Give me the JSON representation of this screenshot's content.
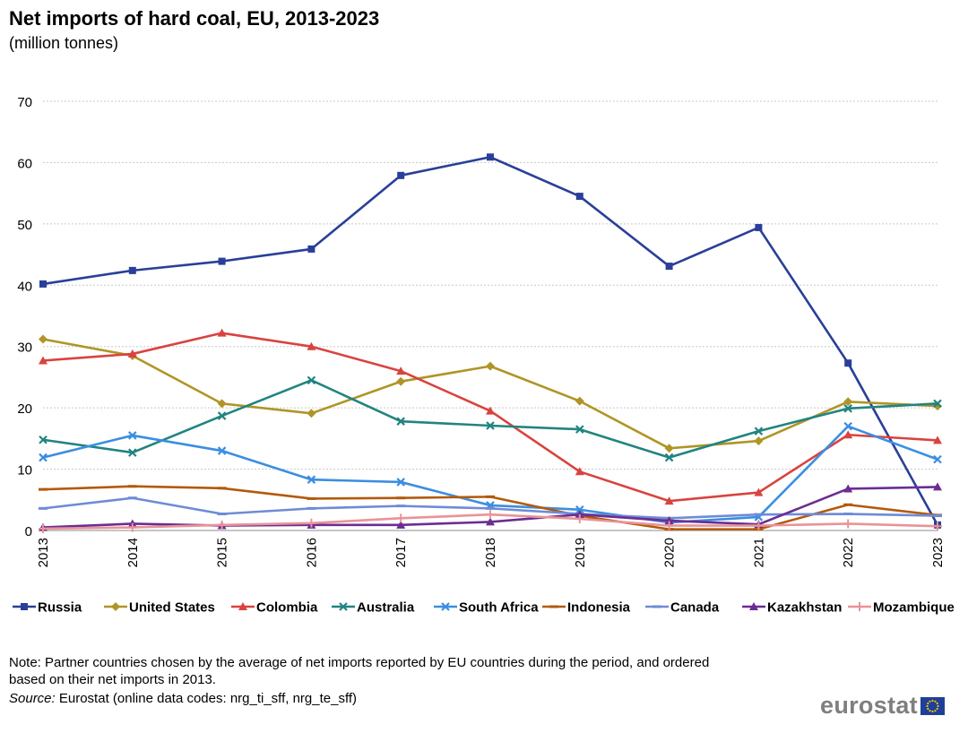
{
  "chart_data": {
    "type": "line",
    "title": "Net imports of hard coal, EU, 2013-2023",
    "subtitle": "(million tonnes)",
    "x": [
      "2013",
      "2014",
      "2015",
      "2016",
      "2017",
      "2018",
      "2019",
      "2020",
      "2021",
      "2022",
      "2023"
    ],
    "ylim": [
      0,
      70
    ],
    "yticks": [
      0,
      10,
      20,
      30,
      40,
      50,
      60,
      70
    ],
    "grid": true,
    "legend_position": "bottom",
    "series": [
      {
        "name": "Russia",
        "color": "#2a3f98",
        "marker": "square",
        "values": [
          40.2,
          42.4,
          43.9,
          45.9,
          57.9,
          60.9,
          54.5,
          43.1,
          49.4,
          27.3,
          0.9
        ]
      },
      {
        "name": "United States",
        "color": "#b09526",
        "marker": "diamond",
        "values": [
          31.2,
          28.5,
          20.7,
          19.1,
          24.3,
          26.8,
          21.1,
          13.4,
          14.6,
          21.0,
          20.3
        ]
      },
      {
        "name": "Colombia",
        "color": "#d9433f",
        "marker": "triangle",
        "values": [
          27.7,
          28.8,
          32.2,
          30.0,
          26.0,
          19.5,
          9.6,
          4.8,
          6.2,
          15.6,
          14.7
        ]
      },
      {
        "name": "Australia",
        "color": "#218480",
        "marker": "x",
        "values": [
          14.8,
          12.7,
          18.7,
          24.5,
          17.8,
          17.1,
          16.5,
          11.9,
          16.2,
          19.9,
          20.7
        ]
      },
      {
        "name": "South Africa",
        "color": "#3b8ee1",
        "marker": "x",
        "values": [
          11.9,
          15.5,
          13.0,
          8.3,
          7.9,
          4.1,
          3.4,
          1.3,
          2.2,
          17.0,
          11.6
        ]
      },
      {
        "name": "Indonesia",
        "color": "#b35a0b",
        "marker": "dash",
        "values": [
          6.7,
          7.2,
          6.9,
          5.2,
          5.3,
          5.5,
          2.4,
          0.2,
          0.2,
          4.2,
          2.5
        ]
      },
      {
        "name": "Canada",
        "color": "#6e8bd6",
        "marker": "dash",
        "values": [
          3.6,
          5.3,
          2.7,
          3.6,
          4.0,
          3.6,
          2.7,
          2.0,
          2.6,
          2.7,
          2.4
        ]
      },
      {
        "name": "Kazakhstan",
        "color": "#6b2d94",
        "marker": "triangle",
        "values": [
          0.5,
          1.1,
          0.8,
          0.9,
          0.9,
          1.4,
          2.6,
          1.6,
          1.0,
          6.8,
          7.1
        ]
      },
      {
        "name": "Mozambique",
        "color": "#e99397",
        "marker": "plus",
        "values": [
          0.3,
          0.5,
          0.9,
          1.2,
          2.0,
          2.6,
          1.9,
          0.8,
          0.8,
          1.1,
          0.7
        ]
      }
    ]
  },
  "note": "Note: Partner countries chosen by the average of net imports reported by EU countries during the period, and ordered based on their net imports in 2013.",
  "source_label": "Source:",
  "source_text": " Eurostat (online data codes: nrg_ti_sff, nrg_te_sff)",
  "logo": {
    "text": "eurostat",
    "flag_color": "#1f3f99",
    "star_color": "#f6c700"
  }
}
